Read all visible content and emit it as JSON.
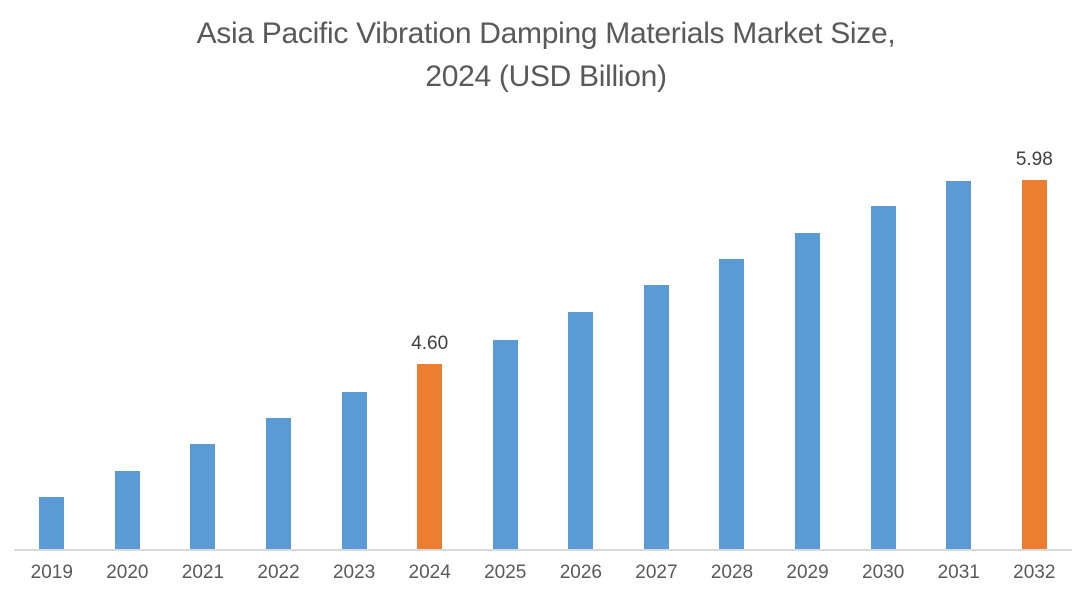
{
  "title": {
    "line1": "Asia Pacific Vibration Damping Materials Market Size,",
    "line2": "2024 (USD Billion)"
  },
  "colors": {
    "bar_default": "#5B9BD5",
    "bar_highlight": "#ED7D31",
    "title_text": "#595959",
    "axis_label_text": "#595959",
    "data_label_text": "#404040",
    "axis_line": "#D9D9D9",
    "background": "#FFFFFF"
  },
  "chart_data": {
    "type": "bar",
    "title": "Asia Pacific Vibration Damping Materials Market Size, 2024 (USD Billion)",
    "categories": [
      "2019",
      "2020",
      "2021",
      "2022",
      "2023",
      "2024",
      "2025",
      "2026",
      "2027",
      "2028",
      "2029",
      "2030",
      "2031",
      "2032"
    ],
    "values": [
      3.73,
      3.9,
      4.08,
      4.25,
      4.42,
      4.6,
      4.76,
      4.94,
      5.12,
      5.29,
      5.46,
      5.64,
      5.8,
      5.98
    ],
    "data_labels": [
      "",
      "",
      "",
      "",
      "",
      "4.60",
      "",
      "",
      "",
      "",
      "",
      "",
      "",
      "5.98"
    ],
    "highlight_indices": [
      5,
      13
    ],
    "bar_color": "#5B9BD5",
    "highlight_color": "#ED7D31",
    "xlabel": "",
    "ylabel": "",
    "ylim": [
      3.39,
      6.01
    ],
    "grid": false,
    "legend": false,
    "unit": "USD Billion"
  }
}
